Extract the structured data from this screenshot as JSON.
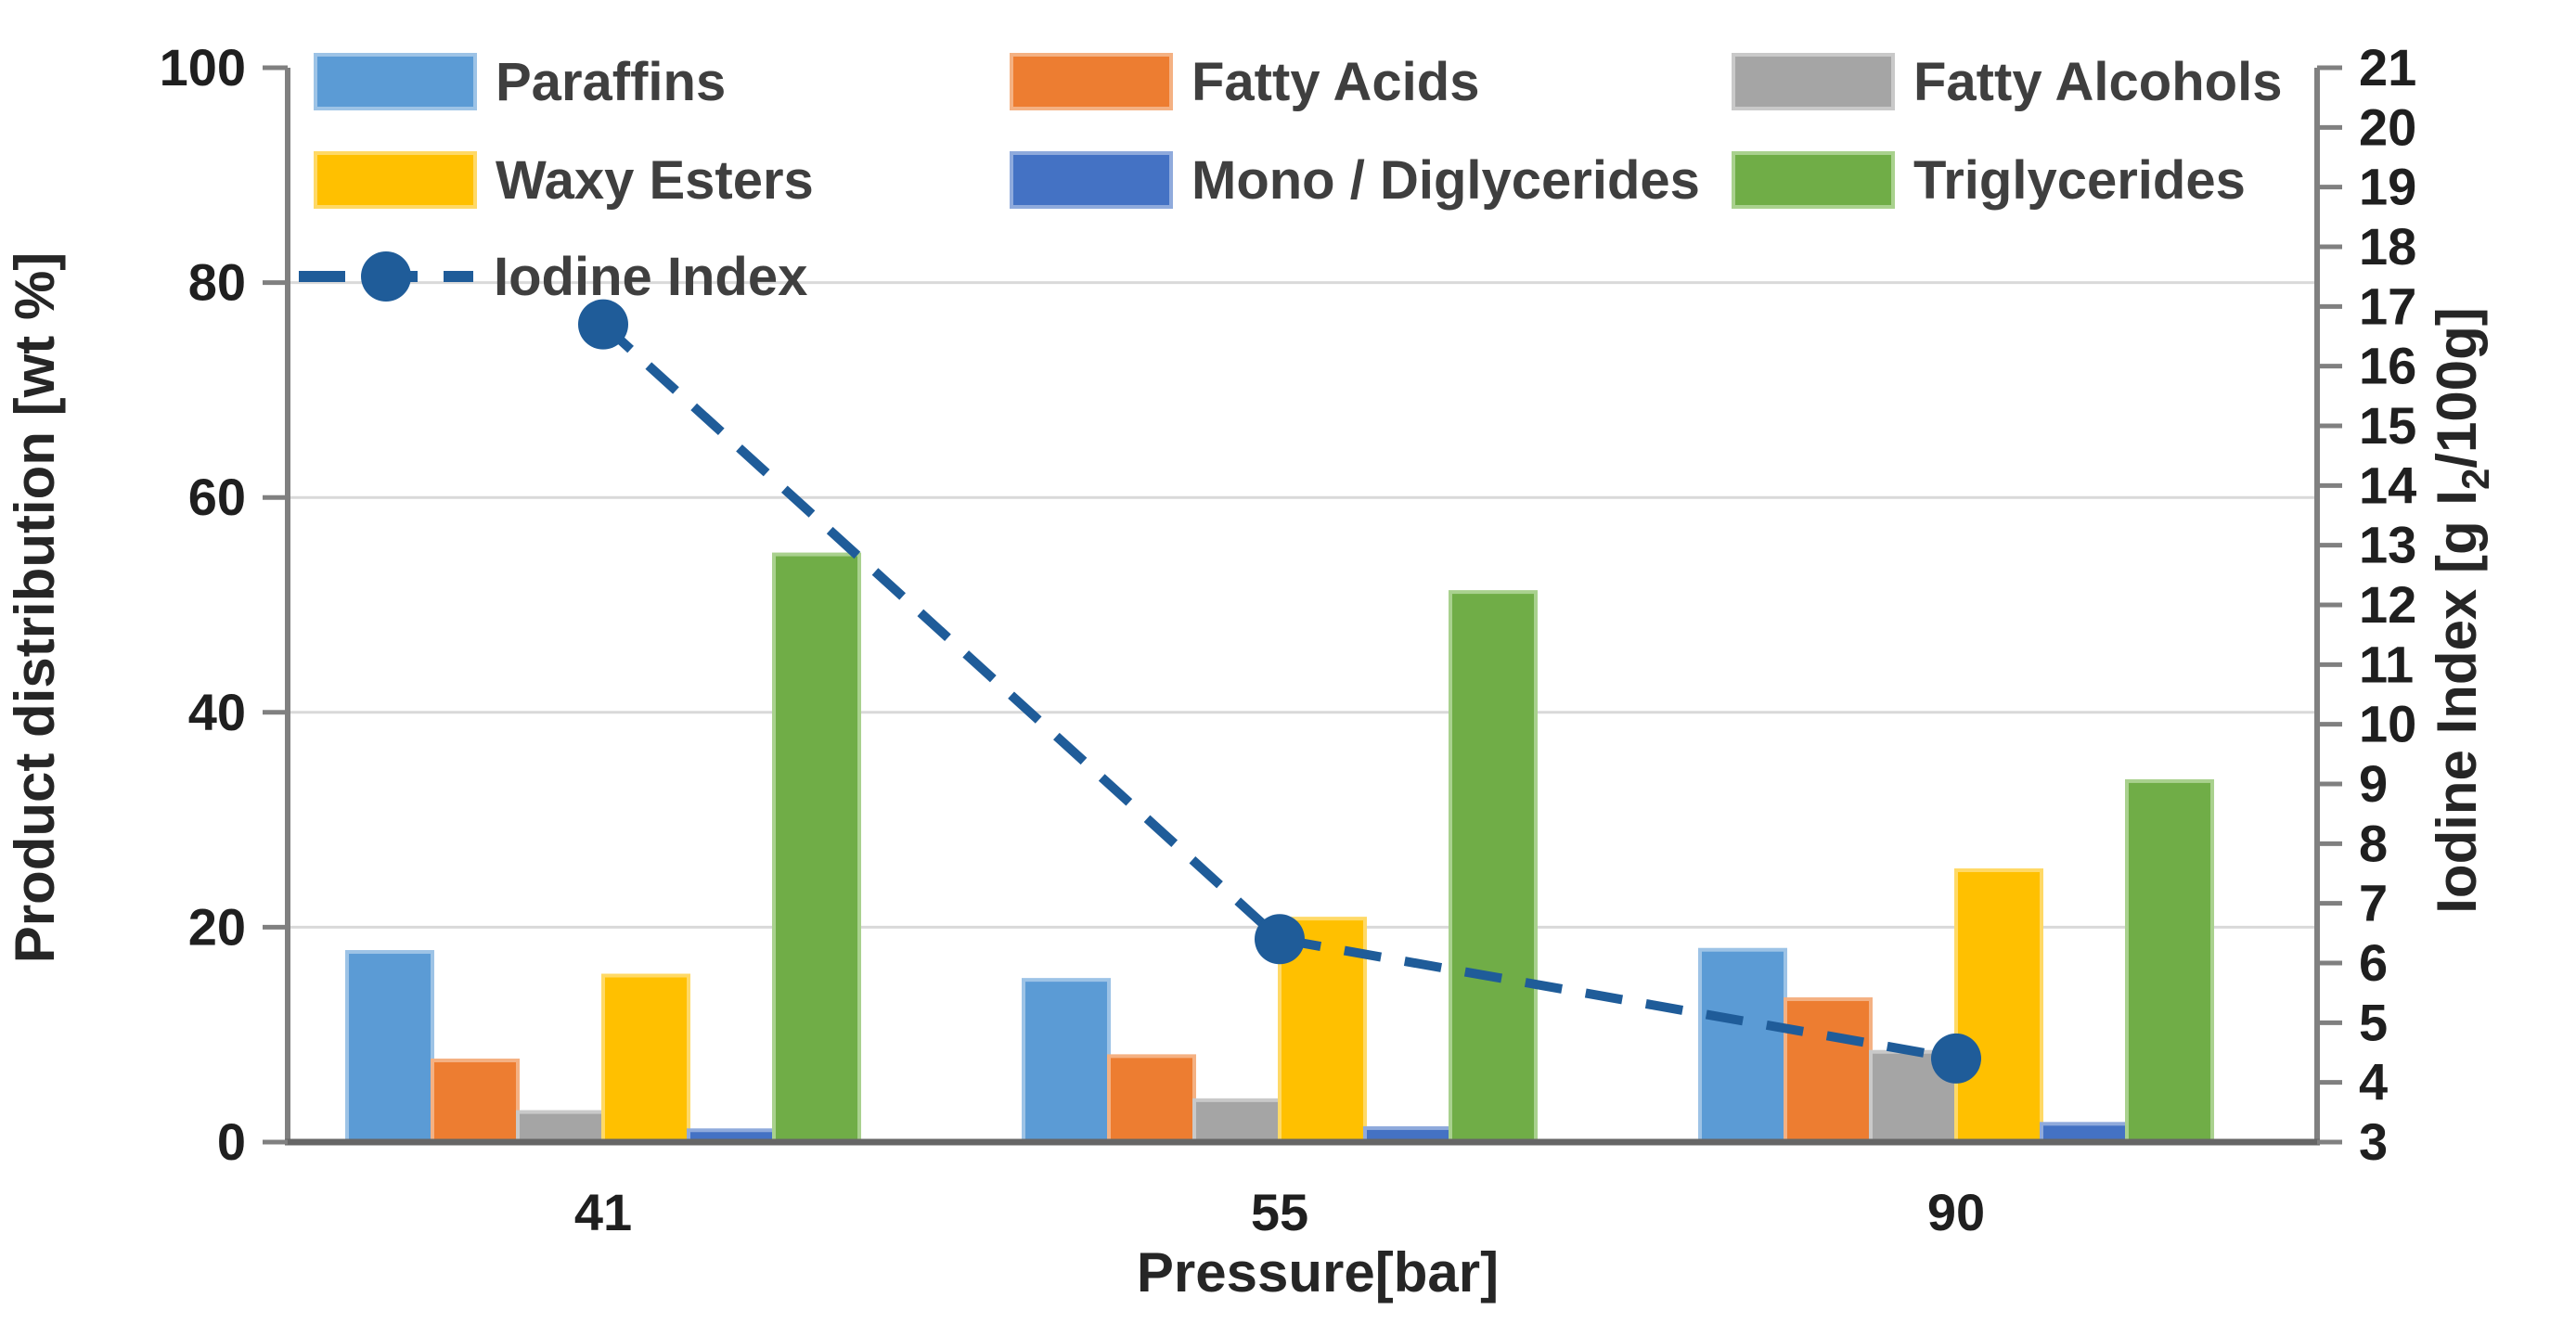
{
  "figure": {
    "background": "#FFFFFF",
    "kind": "combo bar and line chart"
  },
  "chart_data": {
    "type": "bar",
    "categories": [
      "41",
      "55",
      "90"
    ],
    "xlabel": "Pressure[bar]",
    "ylabel_left": "Product distribution [wt %]",
    "ylabel_right": "Iodine Index [g I₂/100g]",
    "ylabel_right_parts": {
      "prefix": "Iodine Index [g I",
      "subscript": "2",
      "suffix": "/100g]"
    },
    "axis_left": {
      "min": 0,
      "max": 100,
      "step": 20,
      "ticks": [
        0,
        20,
        40,
        60,
        80,
        100
      ]
    },
    "axis_right": {
      "min": 3,
      "max": 21,
      "step": 1
    },
    "grid": true,
    "legend_position": "top",
    "series": [
      {
        "name": "Paraffins",
        "type": "bar",
        "axis": "left",
        "color": "#5B9BD5",
        "edge_color": "#9DC3E6",
        "values": [
          17.7,
          15.1,
          17.9
        ]
      },
      {
        "name": "Fatty Acids",
        "type": "bar",
        "axis": "left",
        "color": "#ED7D31",
        "edge_color": "#F4B183",
        "values": [
          7.6,
          8.0,
          13.3
        ]
      },
      {
        "name": "Fatty Alcohols",
        "type": "bar",
        "axis": "left",
        "color": "#A5A5A5",
        "edge_color": "#C9C9C9",
        "values": [
          2.8,
          3.9,
          8.4
        ]
      },
      {
        "name": "Waxy Esters",
        "type": "bar",
        "axis": "left",
        "color": "#FFC000",
        "edge_color": "#FFD966",
        "values": [
          15.5,
          20.8,
          25.3
        ]
      },
      {
        "name": "Mono / Diglycerides",
        "type": "bar",
        "axis": "left",
        "color": "#4472C4",
        "edge_color": "#8FAADC",
        "values": [
          1.1,
          1.3,
          1.7
        ]
      },
      {
        "name": "Triglycerides",
        "type": "bar",
        "axis": "left",
        "color": "#70AD47",
        "edge_color": "#A9D18E",
        "values": [
          54.7,
          51.2,
          33.6
        ]
      },
      {
        "name": "Iodine Index",
        "type": "line",
        "axis": "right",
        "color": "#1F5C99",
        "style": "dashed",
        "marker": "circle",
        "values": [
          16.7,
          6.4,
          4.4
        ]
      }
    ]
  },
  "style": {
    "grid_color": "#D9D9D9",
    "axis_color": "#808080",
    "baseline_color": "#666666",
    "text_color": "#1f1f1f",
    "legend_text_color": "#3f3f3f"
  }
}
